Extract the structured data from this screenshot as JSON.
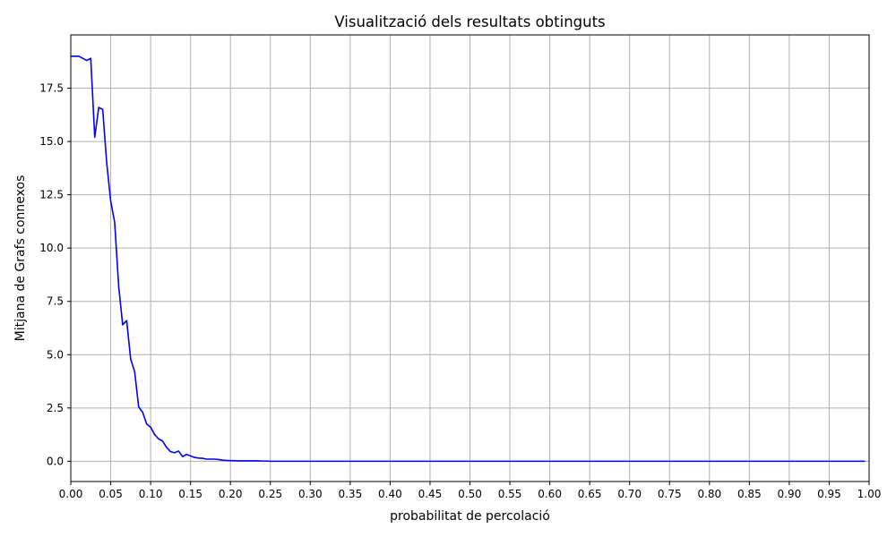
{
  "chart_data": {
    "type": "line",
    "title": "Visualització dels resultats obtinguts",
    "xlabel": "probabilitat de percolació",
    "ylabel": "Mitjana de Grafs connexos",
    "xlim": [
      0.0,
      1.0
    ],
    "ylim": [
      -0.95,
      20.0
    ],
    "grid": true,
    "x_ticks": [
      0.0,
      0.05,
      0.1,
      0.15,
      0.2,
      0.25,
      0.3,
      0.35,
      0.4,
      0.45,
      0.5,
      0.55,
      0.6,
      0.65,
      0.7,
      0.75,
      0.8,
      0.85,
      0.9,
      0.95,
      1.0
    ],
    "x_tick_labels": [
      "0.00",
      "0.05",
      "0.10",
      "0.15",
      "0.20",
      "0.25",
      "0.30",
      "0.35",
      "0.40",
      "0.45",
      "0.50",
      "0.55",
      "0.60",
      "0.65",
      "0.70",
      "0.75",
      "0.80",
      "0.85",
      "0.90",
      "0.95",
      "1.00"
    ],
    "y_ticks": [
      0.0,
      2.5,
      5.0,
      7.5,
      10.0,
      12.5,
      15.0,
      17.5
    ],
    "y_tick_labels": [
      "0.0",
      "2.5",
      "5.0",
      "7.5",
      "10.0",
      "12.5",
      "15.0",
      "17.5"
    ],
    "series": [
      {
        "color": "#0000ff",
        "x": [
          0.0,
          0.005,
          0.01,
          0.015,
          0.02,
          0.025,
          0.03,
          0.035,
          0.04,
          0.045,
          0.05,
          0.055,
          0.06,
          0.065,
          0.07,
          0.075,
          0.08,
          0.085,
          0.09,
          0.095,
          0.1,
          0.105,
          0.11,
          0.115,
          0.12,
          0.125,
          0.13,
          0.135,
          0.14,
          0.145,
          0.15,
          0.155,
          0.16,
          0.165,
          0.17,
          0.175,
          0.18,
          0.185,
          0.19,
          0.195,
          0.2,
          0.205,
          0.21,
          0.215,
          0.22,
          0.225,
          0.23,
          0.235,
          0.24,
          0.245,
          0.25,
          0.3,
          0.35,
          0.4,
          0.45,
          0.5,
          0.55,
          0.6,
          0.65,
          0.7,
          0.75,
          0.8,
          0.85,
          0.9,
          0.95,
          0.995
        ],
        "y": [
          19.0,
          19.0,
          19.0,
          18.9,
          18.8,
          18.9,
          15.2,
          16.6,
          16.5,
          14.0,
          12.2,
          11.2,
          8.2,
          6.4,
          6.6,
          4.8,
          4.2,
          2.55,
          2.3,
          1.75,
          1.6,
          1.25,
          1.05,
          0.95,
          0.65,
          0.45,
          0.4,
          0.48,
          0.22,
          0.32,
          0.25,
          0.18,
          0.15,
          0.14,
          0.1,
          0.1,
          0.1,
          0.08,
          0.05,
          0.04,
          0.03,
          0.03,
          0.02,
          0.02,
          0.02,
          0.02,
          0.02,
          0.02,
          0.01,
          0.01,
          0.0,
          0.0,
          0.0,
          0.0,
          0.0,
          0.0,
          0.0,
          0.0,
          0.0,
          0.0,
          0.0,
          0.0,
          0.0,
          0.0,
          0.0,
          0.0
        ]
      }
    ]
  }
}
